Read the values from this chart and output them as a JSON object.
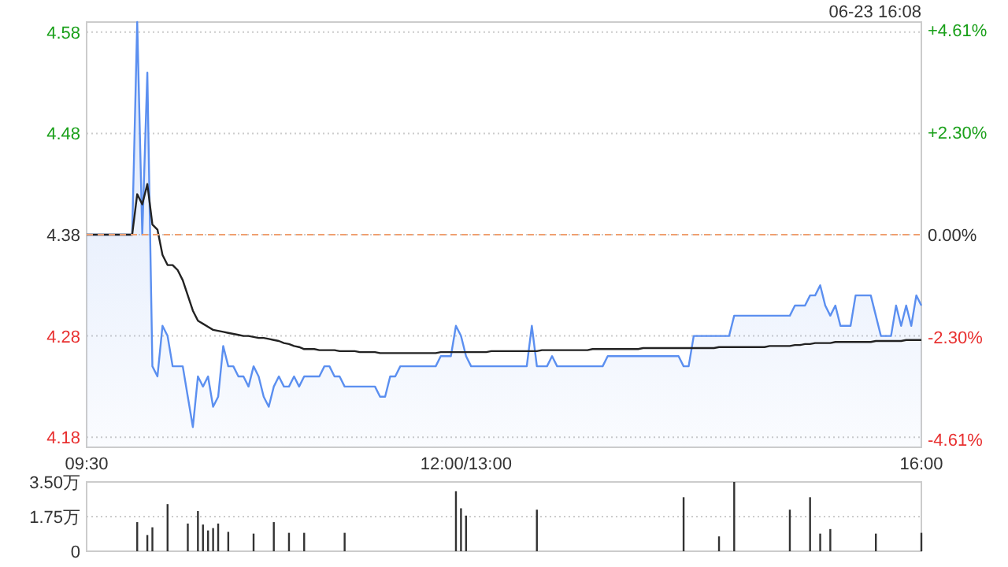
{
  "chart_data": [
    {
      "type": "area",
      "categories": [
        "09:30",
        null,
        null,
        null,
        null,
        null,
        null,
        null,
        null,
        null,
        null,
        null,
        null,
        null,
        null,
        null,
        null,
        null,
        null,
        null,
        null,
        null,
        null,
        null,
        null,
        null,
        null,
        null,
        null,
        null,
        null,
        null,
        null,
        null,
        null,
        null,
        null,
        null,
        null,
        null,
        null,
        null,
        null,
        null,
        null,
        null,
        null,
        null,
        null,
        null,
        null,
        null,
        null,
        null,
        null,
        null,
        null,
        null,
        null,
        null,
        null,
        null,
        null,
        null,
        null,
        null,
        null,
        null,
        null,
        null,
        null,
        null,
        null,
        null,
        null,
        "12:00/13:00",
        null,
        null,
        null,
        null,
        null,
        null,
        null,
        null,
        null,
        null,
        null,
        null,
        null,
        null,
        null,
        null,
        null,
        null,
        null,
        null,
        null,
        null,
        null,
        null,
        null,
        null,
        null,
        null,
        null,
        null,
        null,
        null,
        null,
        null,
        null,
        null,
        null,
        null,
        null,
        null,
        null,
        null,
        null,
        null,
        null,
        null,
        null,
        null,
        null,
        null,
        null,
        null,
        null,
        null,
        null,
        null,
        null,
        null,
        null,
        null,
        null,
        null,
        null,
        null,
        null,
        null,
        null,
        null,
        null,
        null,
        null,
        null,
        null,
        null,
        null,
        null,
        null,
        null,
        null,
        null,
        null,
        null,
        null,
        null,
        null,
        null,
        null,
        null,
        null,
        "16:00"
      ],
      "ylim": [
        4.17,
        4.59
      ],
      "yticks": [
        4.18,
        4.28,
        4.38,
        4.48,
        4.58
      ],
      "y2lim": [
        -4.79,
        4.79
      ],
      "y2ticks": [
        {
          "value": 4.61,
          "label": "+4.61%"
        },
        {
          "value": 2.3,
          "label": "+2.30%"
        },
        {
          "value": 0,
          "label": "0.00%"
        },
        {
          "value": -2.3,
          "label": "-2.30%"
        },
        {
          "value": -4.61,
          "label": "-4.61%"
        }
      ],
      "grid": "y",
      "ref_lines": [
        {
          "axis": "y",
          "value": 4.38,
          "color": "#f0a070",
          "line_style": "dashed"
        }
      ],
      "annotations": [
        "06-23 16:08"
      ],
      "series": [
        {
          "color": "#5b8ff0",
          "values": [
            4.38,
            4.38,
            4.38,
            4.38,
            4.38,
            4.38,
            4.38,
            4.38,
            4.38,
            4.38,
            4.59,
            4.38,
            4.54,
            4.25,
            4.24,
            4.29,
            4.28,
            4.25,
            4.25,
            4.25,
            4.22,
            4.19,
            4.24,
            4.23,
            4.24,
            4.21,
            4.22,
            4.27,
            4.25,
            4.25,
            4.24,
            4.24,
            4.23,
            4.25,
            4.24,
            4.22,
            4.21,
            4.23,
            4.24,
            4.23,
            4.23,
            4.24,
            4.23,
            4.24,
            4.24,
            4.24,
            4.24,
            4.25,
            4.25,
            4.24,
            4.24,
            4.23,
            4.23,
            4.23,
            4.23,
            4.23,
            4.23,
            4.23,
            4.22,
            4.22,
            4.24,
            4.24,
            4.25,
            4.25,
            4.25,
            4.25,
            4.25,
            4.25,
            4.25,
            4.25,
            4.26,
            4.26,
            4.26,
            4.29,
            4.28,
            4.26,
            4.25,
            4.25,
            4.25,
            4.25,
            4.25,
            4.25,
            4.25,
            4.25,
            4.25,
            4.25,
            4.25,
            4.25,
            4.29,
            4.25,
            4.25,
            4.25,
            4.26,
            4.25,
            4.25,
            4.25,
            4.25,
            4.25,
            4.25,
            4.25,
            4.25,
            4.25,
            4.25,
            4.26,
            4.26,
            4.26,
            4.26,
            4.26,
            4.26,
            4.26,
            4.26,
            4.26,
            4.26,
            4.26,
            4.26,
            4.26,
            4.26,
            4.26,
            4.25,
            4.25,
            4.28,
            4.28,
            4.28,
            4.28,
            4.28,
            4.28,
            4.28,
            4.28,
            4.3,
            4.3,
            4.3,
            4.3,
            4.3,
            4.3,
            4.3,
            4.3,
            4.3,
            4.3,
            4.3,
            4.3,
            4.31,
            4.31,
            4.31,
            4.32,
            4.32,
            4.33,
            4.31,
            4.3,
            4.31,
            4.29,
            4.29,
            4.29,
            4.32,
            4.32,
            4.32,
            4.32,
            4.3,
            4.28,
            4.28,
            4.28,
            4.31,
            4.29,
            4.31,
            4.29,
            4.32,
            4.31
          ]
        },
        {
          "type": "line",
          "color": "#222222",
          "values": [
            4.38,
            4.38,
            4.38,
            4.38,
            4.38,
            4.38,
            4.38,
            4.38,
            4.38,
            4.38,
            4.42,
            4.41,
            4.43,
            4.39,
            4.385,
            4.36,
            4.35,
            4.35,
            4.345,
            4.335,
            4.32,
            4.305,
            4.295,
            4.292,
            4.289,
            4.286,
            4.285,
            4.284,
            4.283,
            4.282,
            4.281,
            4.28,
            4.28,
            4.279,
            4.278,
            4.278,
            4.277,
            4.276,
            4.275,
            4.273,
            4.272,
            4.27,
            4.269,
            4.267,
            4.267,
            4.267,
            4.266,
            4.266,
            4.266,
            4.266,
            4.265,
            4.265,
            4.265,
            4.265,
            4.264,
            4.264,
            4.264,
            4.264,
            4.263,
            4.263,
            4.263,
            4.263,
            4.263,
            4.263,
            4.263,
            4.263,
            4.263,
            4.263,
            4.263,
            4.263,
            4.264,
            4.264,
            4.264,
            4.264,
            4.264,
            4.264,
            4.264,
            4.264,
            4.264,
            4.264,
            4.265,
            4.265,
            4.265,
            4.265,
            4.265,
            4.265,
            4.265,
            4.265,
            4.265,
            4.265,
            4.266,
            4.266,
            4.266,
            4.266,
            4.266,
            4.266,
            4.266,
            4.266,
            4.266,
            4.266,
            4.267,
            4.267,
            4.267,
            4.267,
            4.267,
            4.267,
            4.267,
            4.267,
            4.267,
            4.267,
            4.268,
            4.268,
            4.268,
            4.268,
            4.268,
            4.268,
            4.268,
            4.268,
            4.268,
            4.268,
            4.268,
            4.268,
            4.268,
            4.268,
            4.268,
            4.269,
            4.269,
            4.269,
            4.269,
            4.269,
            4.269,
            4.269,
            4.269,
            4.269,
            4.269,
            4.27,
            4.27,
            4.27,
            4.27,
            4.27,
            4.271,
            4.271,
            4.272,
            4.272,
            4.273,
            4.273,
            4.273,
            4.273,
            4.274,
            4.274,
            4.274,
            4.274,
            4.274,
            4.274,
            4.274,
            4.274,
            4.275,
            4.275,
            4.275,
            4.275,
            4.275,
            4.275,
            4.276,
            4.276,
            4.276,
            4.276
          ]
        }
      ]
    },
    {
      "type": "bar",
      "color": "#333333",
      "categories": [
        null,
        null,
        null,
        null,
        null,
        null,
        null,
        null,
        null,
        null,
        null,
        null,
        null,
        null,
        null,
        null,
        null,
        null,
        null,
        null,
        null,
        null,
        null,
        null,
        null,
        null,
        null,
        null,
        null,
        null,
        null,
        null,
        null,
        null,
        null,
        null,
        null,
        null,
        null,
        null,
        null,
        null,
        null,
        null,
        null,
        null,
        null,
        null,
        null,
        null,
        null,
        null,
        null,
        null,
        null,
        null,
        null,
        null,
        null,
        null,
        null,
        null,
        null,
        null,
        null,
        null,
        null,
        null,
        null,
        null,
        null,
        null,
        null,
        null,
        null,
        null,
        null,
        null,
        null,
        null,
        null,
        null,
        null,
        null,
        null,
        null,
        null,
        null,
        null,
        null,
        null,
        null,
        null,
        null,
        null,
        null,
        null,
        null,
        null,
        null,
        null,
        null,
        null,
        null,
        null,
        null,
        null,
        null,
        null,
        null,
        null,
        null,
        null,
        null,
        null,
        null,
        null,
        null,
        null,
        null,
        null,
        null,
        null,
        null,
        null,
        null,
        null,
        null,
        null,
        null,
        null,
        null,
        null,
        null,
        null,
        null,
        null,
        null,
        null,
        null,
        null,
        null,
        null,
        null,
        null,
        null,
        null,
        null,
        null,
        null,
        null,
        null,
        null,
        null,
        null,
        null,
        null,
        null,
        null,
        null,
        null,
        null,
        null,
        null,
        null,
        null
      ],
      "tick_labels": "y",
      "ylim": [
        0,
        3.5
      ],
      "yticks": [
        {
          "value": 0,
          "label": "0"
        },
        {
          "value": 1.75,
          "label": "1.75万"
        },
        {
          "value": 3.5,
          "label": "3.50万"
        }
      ],
      "grid": "y",
      "values": [
        null,
        null,
        null,
        null,
        null,
        null,
        null,
        null,
        null,
        null,
        1.47,
        null,
        0.82,
        1.21,
        null,
        null,
        2.38,
        null,
        null,
        null,
        1.4,
        null,
        2.03,
        1.35,
        1.05,
        1.17,
        1.4,
        null,
        0.98,
        null,
        null,
        null,
        null,
        0.89,
        null,
        null,
        null,
        1.47,
        null,
        null,
        0.93,
        null,
        null,
        0.93,
        null,
        null,
        null,
        null,
        null,
        null,
        null,
        0.93,
        null,
        null,
        null,
        null,
        null,
        null,
        null,
        null,
        null,
        null,
        null,
        null,
        null,
        null,
        null,
        null,
        null,
        null,
        null,
        null,
        null,
        3.03,
        2.17,
        1.8,
        null,
        null,
        null,
        null,
        null,
        null,
        null,
        null,
        null,
        null,
        null,
        null,
        null,
        2.1,
        null,
        null,
        null,
        null,
        null,
        null,
        null,
        null,
        null,
        null,
        null,
        null,
        null,
        null,
        null,
        null,
        null,
        null,
        null,
        null,
        null,
        null,
        null,
        null,
        null,
        null,
        null,
        null,
        2.73,
        null,
        null,
        null,
        null,
        null,
        null,
        0.75,
        null,
        null,
        3.5,
        null,
        null,
        null,
        null,
        null,
        null,
        null,
        null,
        null,
        null,
        2.1,
        null,
        null,
        null,
        2.73,
        null,
        0.89,
        null,
        1.12,
        null,
        null,
        null,
        null,
        null,
        null,
        null,
        null,
        0.89,
        null,
        null,
        null,
        null,
        null,
        null,
        null,
        null,
        0.93
      ]
    }
  ]
}
